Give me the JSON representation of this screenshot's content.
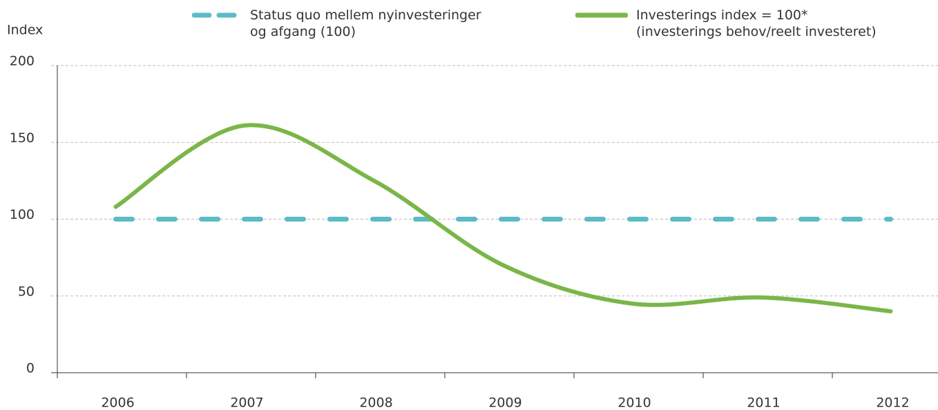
{
  "chart_data": {
    "type": "line",
    "ylabel": "Index",
    "categories": [
      "2006",
      "2007",
      "2008",
      "2009",
      "2010",
      "2011",
      "2012"
    ],
    "series": [
      {
        "name": "Status quo mellem nyinvesteringer\nog afgang (100)",
        "color": "#5bbcc7",
        "dashed": true,
        "values": [
          100,
          100,
          100,
          100,
          100,
          100,
          100
        ]
      },
      {
        "name": "Investerings index = 100*\n(investerings behov/reelt investeret)",
        "color": "#7ab648",
        "dashed": false,
        "values": [
          108,
          161,
          125,
          70,
          45,
          49,
          40
        ]
      }
    ],
    "ylim": [
      0,
      200
    ],
    "yticks": [
      0,
      50,
      100,
      150,
      200
    ],
    "grid": true
  }
}
